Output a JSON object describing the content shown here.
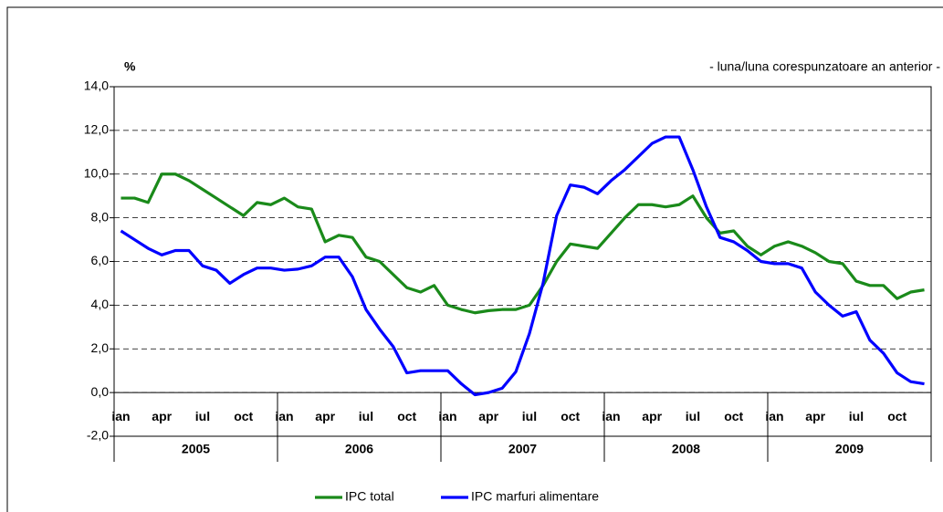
{
  "chart_data": {
    "type": "line",
    "y_label": "%",
    "annotation": "- luna/luna corespunzatoare an anterior -",
    "categories": [
      "ian",
      null,
      null,
      "apr",
      null,
      null,
      "iul",
      null,
      null,
      "oct",
      null,
      null,
      "ian",
      null,
      null,
      "apr",
      null,
      null,
      "iul",
      null,
      null,
      "oct",
      null,
      null,
      "ian",
      null,
      null,
      "apr",
      null,
      null,
      "iul",
      null,
      null,
      "oct",
      null,
      null,
      "ian",
      null,
      null,
      "apr",
      null,
      null,
      "iul",
      null,
      null,
      "oct",
      null,
      null,
      "ian",
      null,
      null,
      "apr",
      null,
      null,
      "iul",
      null,
      null,
      "oct",
      null,
      null
    ],
    "groups": [
      "2005",
      "2006",
      "2007",
      "2008",
      "2009"
    ],
    "ylim": [
      -2,
      14
    ],
    "yticks": [
      {
        "value": -2,
        "label": "-2,0"
      },
      {
        "value": 0,
        "label": "0,0"
      },
      {
        "value": 2,
        "label": "2,0"
      },
      {
        "value": 4,
        "label": "4,0"
      },
      {
        "value": 6,
        "label": "6,0"
      },
      {
        "value": 8,
        "label": "8,0"
      },
      {
        "value": 10,
        "label": "10,0"
      },
      {
        "value": 12,
        "label": "12,0"
      },
      {
        "value": 14,
        "label": "14,0"
      }
    ],
    "grid": true,
    "series": [
      {
        "name": "IPC total",
        "color": "#1a8a1a",
        "values": [
          8.9,
          8.9,
          8.7,
          10.0,
          10.0,
          9.7,
          9.3,
          8.9,
          8.5,
          8.1,
          8.7,
          8.6,
          8.9,
          8.5,
          8.4,
          6.9,
          7.2,
          7.1,
          6.2,
          6.0,
          5.4,
          4.8,
          4.6,
          4.9,
          4.0,
          3.8,
          3.65,
          3.75,
          3.8,
          3.8,
          4.0,
          4.9,
          6.0,
          6.8,
          6.7,
          6.6,
          7.3,
          8.0,
          8.6,
          8.6,
          8.5,
          8.6,
          9.0,
          8.0,
          7.3,
          7.4,
          6.7,
          6.3,
          6.7,
          6.9,
          6.7,
          6.4,
          6.0,
          5.9,
          5.1,
          4.9,
          4.9,
          4.3,
          4.6,
          4.7
        ]
      },
      {
        "name": "IPC marfuri alimentare",
        "color": "#0000ff",
        "values": [
          7.4,
          7.0,
          6.6,
          6.3,
          6.5,
          6.5,
          5.8,
          5.6,
          5.0,
          5.4,
          5.7,
          5.7,
          5.6,
          5.65,
          5.8,
          6.2,
          6.2,
          5.3,
          3.8,
          2.9,
          2.1,
          0.9,
          1.0,
          1.0,
          1.0,
          0.4,
          -0.1,
          0.0,
          0.2,
          0.95,
          2.7,
          5.0,
          8.1,
          9.5,
          9.4,
          9.1,
          9.7,
          10.2,
          10.8,
          11.4,
          11.7,
          11.7,
          10.2,
          8.5,
          7.1,
          6.9,
          6.5,
          6.0,
          5.9,
          5.9,
          5.7,
          4.6,
          4.0,
          3.5,
          3.7,
          2.4,
          1.8,
          0.9,
          0.5,
          0.4
        ]
      }
    ]
  }
}
